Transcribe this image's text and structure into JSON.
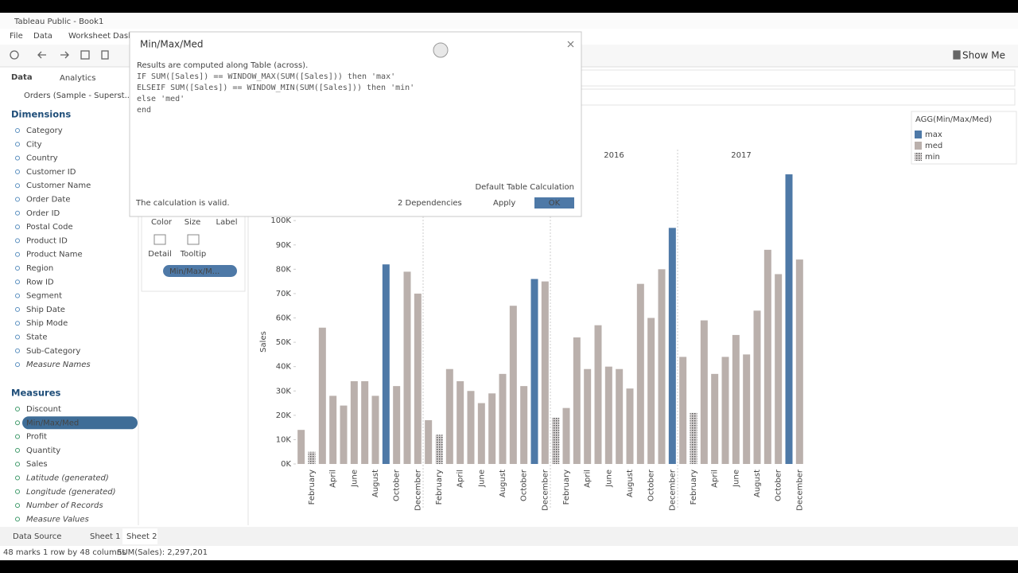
{
  "window": {
    "title": "Tableau Public - Book1",
    "menu": [
      "File",
      "Data",
      "Worksheet",
      "Dashboard"
    ],
    "show_me": "Show Me"
  },
  "sidebar": {
    "tabs": [
      "Data",
      "Analytics"
    ],
    "source": "Orders (Sample - Superst...",
    "dimensions_heading": "Dimensions",
    "dimensions": [
      "Category",
      "City",
      "Country",
      "Customer ID",
      "Customer Name",
      "Order Date",
      "Order ID",
      "Postal Code",
      "Product ID",
      "Product Name",
      "Region",
      "Row ID",
      "Segment",
      "Ship Date",
      "Ship Mode",
      "State",
      "Sub-Category",
      "Measure Names"
    ],
    "measures_heading": "Measures",
    "measures": [
      "Discount",
      "Min/Max/Med",
      "Profit",
      "Quantity",
      "Sales",
      "Latitude (generated)",
      "Longitude (generated)",
      "Number of Records",
      "Measure Values"
    ]
  },
  "marks_card": {
    "buttons": [
      "Color",
      "Size",
      "Label",
      "Detail",
      "Tooltip"
    ],
    "pill": "Min/Max/M..."
  },
  "dialog": {
    "title": "Min/Max/Med",
    "note": "Results are computed along Table (across).",
    "code": [
      "IF SUM([Sales]) == WINDOW_MAX(SUM([Sales])) then 'max'",
      "ELSEIF SUM([Sales]) == WINDOW_MIN(SUM([Sales])) then 'min'",
      "else 'med'",
      "end"
    ],
    "table_calc_link": "Default Table Calculation",
    "status": "The calculation is valid.",
    "dependencies": "2 Dependencies",
    "apply": "Apply",
    "ok": "OK"
  },
  "chart_data": {
    "type": "bar",
    "y_label": "Sales",
    "year_headers": [
      null,
      null,
      "2016",
      "2017"
    ],
    "categories": [
      null,
      "February",
      null,
      "April",
      null,
      "June",
      null,
      "August",
      null,
      "October",
      null,
      "December",
      null,
      "February",
      null,
      "April",
      null,
      "June",
      null,
      "August",
      null,
      "October",
      null,
      "December",
      null,
      "February",
      null,
      "April",
      null,
      "June",
      null,
      "August",
      null,
      "October",
      null,
      "December",
      null,
      "February",
      null,
      "April",
      null,
      "June",
      null,
      "August",
      null,
      "October",
      null,
      "December"
    ],
    "values": [
      14000,
      5000,
      56000,
      28000,
      24000,
      34000,
      34000,
      28000,
      82000,
      32000,
      79000,
      70000,
      18000,
      12000,
      39000,
      34000,
      30000,
      25000,
      29000,
      37000,
      65000,
      32000,
      76000,
      75000,
      19000,
      23000,
      52000,
      39000,
      57000,
      40000,
      39000,
      31000,
      74000,
      60000,
      80000,
      97000,
      44000,
      21000,
      59000,
      37000,
      44000,
      53000,
      45000,
      63000,
      88000,
      78000,
      119000,
      84000
    ],
    "levels": [
      1,
      2,
      1,
      1,
      1,
      1,
      1,
      1,
      0,
      1,
      1,
      1,
      1,
      2,
      1,
      1,
      1,
      1,
      1,
      1,
      1,
      1,
      0,
      1,
      2,
      1,
      1,
      1,
      1,
      1,
      1,
      1,
      1,
      1,
      1,
      0,
      1,
      2,
      1,
      1,
      1,
      1,
      1,
      1,
      1,
      1,
      0,
      1
    ],
    "legend": {
      "title": "AGG(Min/Max/Med)",
      "items": [
        {
          "name": "max",
          "color": "#4e79a7"
        },
        {
          "name": "med",
          "color": "#bab0ac"
        },
        {
          "name": "min",
          "color": "#c8c4c4",
          "pattern": true
        }
      ]
    },
    "ylim": [
      0,
      120000
    ],
    "yticks": [
      {
        "value": 0,
        "label": "0K"
      },
      {
        "value": 10000,
        "label": "10K"
      },
      {
        "value": 20000,
        "label": "20K"
      },
      {
        "value": 30000,
        "label": "30K"
      },
      {
        "value": 40000,
        "label": "40K"
      },
      {
        "value": 50000,
        "label": "50K"
      },
      {
        "value": 60000,
        "label": "60K"
      },
      {
        "value": 70000,
        "label": "70K"
      },
      {
        "value": 80000,
        "label": "80K"
      },
      {
        "value": 90000,
        "label": "90K"
      },
      {
        "value": 100000,
        "label": "100K"
      }
    ]
  },
  "bottom": {
    "tabs": [
      "Data Source",
      "Sheet 1",
      "Sheet 2"
    ],
    "status": [
      "48 marks",
      "1 row by 48 columns",
      "SUM(Sales): 2,297,201"
    ]
  }
}
